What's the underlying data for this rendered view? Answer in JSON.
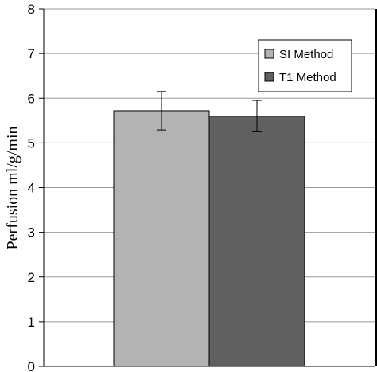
{
  "chart_data": {
    "type": "bar",
    "ylabel": "Perfusion ml/g/min",
    "xlabel": "",
    "ylim": [
      0,
      8
    ],
    "yticks": [
      0,
      1,
      2,
      3,
      4,
      5,
      6,
      7,
      8
    ],
    "grid": true,
    "legend_position": "top-right",
    "series": [
      {
        "name": "SI Method",
        "value": 5.72,
        "error": 0.43,
        "color": "#b3b3b3"
      },
      {
        "name": "T1 Method",
        "value": 5.6,
        "error": 0.35,
        "color": "#606060"
      }
    ]
  }
}
